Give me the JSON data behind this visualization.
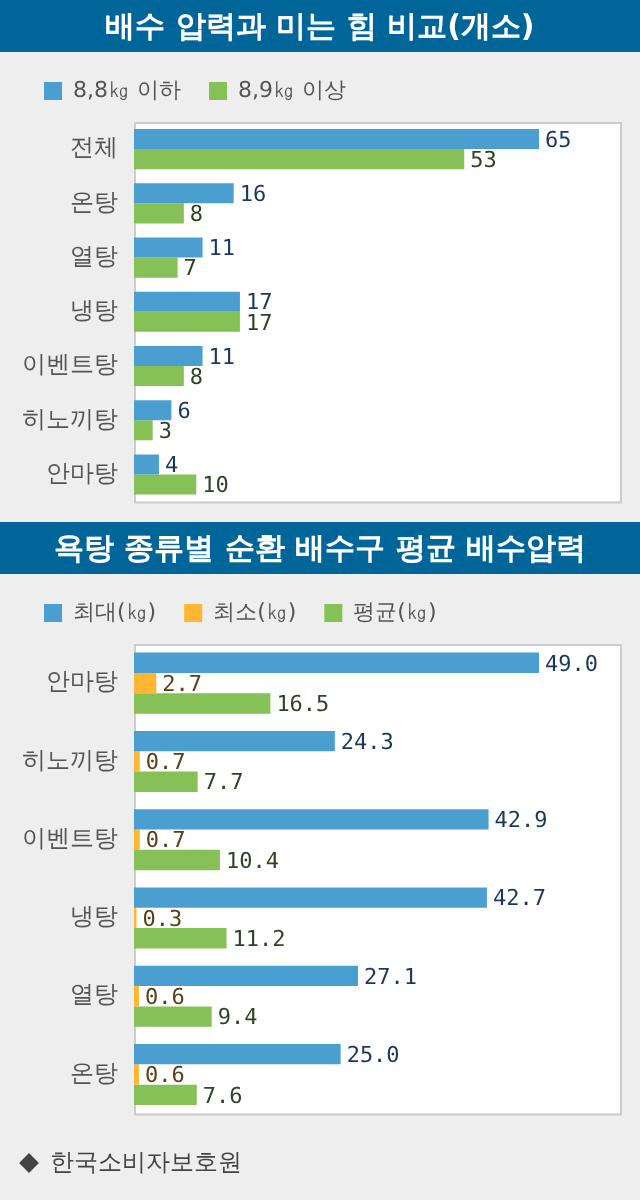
{
  "chart_data": [
    {
      "type": "bar",
      "title": "배수 압력과 미는 힘 비교(개소)",
      "orientation": "horizontal",
      "categories": [
        "전체",
        "온탕",
        "열탕",
        "냉탕",
        "이벤트탕",
        "히노끼탕",
        "안마탕"
      ],
      "series": [
        {
          "name": "8,8㎏ 이하",
          "color": "#4a9fd0",
          "values": [
            65,
            16,
            11,
            17,
            11,
            6,
            4
          ]
        },
        {
          "name": "8,9㎏ 이상",
          "color": "#86c157",
          "values": [
            53,
            8,
            7,
            17,
            8,
            3,
            10
          ]
        }
      ],
      "data_labels": true,
      "legend": "top left"
    },
    {
      "type": "bar",
      "title": "욕탕 종류별 순환 배수구 평균 배수압력",
      "orientation": "horizontal",
      "categories": [
        "안마탕",
        "히노끼탕",
        "이벤트탕",
        "냉탕",
        "열탕",
        "온탕"
      ],
      "series": [
        {
          "name": "최대(㎏)",
          "color": "#4a9fd0",
          "values": [
            49.0,
            24.3,
            42.9,
            42.7,
            27.1,
            25.0
          ],
          "value_labels": [
            "49.0",
            "24.3",
            "42.9",
            "42.7",
            "27.1",
            "25.0"
          ]
        },
        {
          "name": "최소(㎏)",
          "color": "#ffb733",
          "values": [
            2.7,
            0.7,
            0.7,
            0.3,
            0.6,
            0.6
          ],
          "value_labels": [
            "2.7",
            "0.7",
            "0.7",
            "0.3",
            "0.6",
            "0.6"
          ]
        },
        {
          "name": "평균(㎏)",
          "color": "#86c157",
          "values": [
            16.5,
            7.7,
            10.4,
            11.2,
            9.4,
            7.6
          ],
          "value_labels": [
            "16.5",
            "7.7",
            "10.4",
            "11.2",
            "9.4",
            "7.6"
          ]
        }
      ],
      "legend": "top left",
      "annotations": [
        "한국소비자보호원"
      ]
    }
  ]
}
